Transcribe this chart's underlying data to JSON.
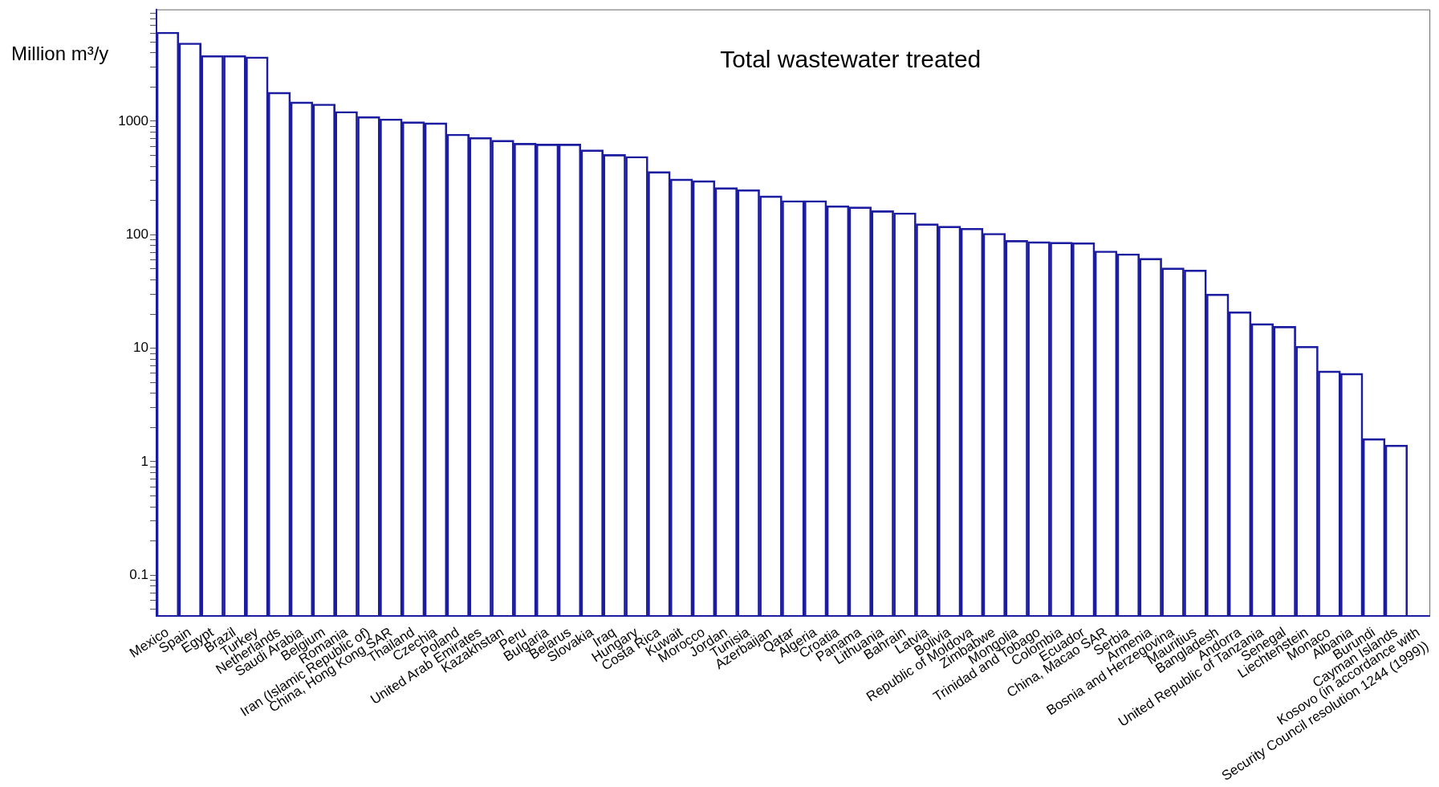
{
  "chart_data": {
    "type": "bar",
    "title": "Total wastewater treated",
    "ylabel": "Million m³/y",
    "categories": [
      "Mexico",
      "Spain",
      "Egypt",
      "Brazil",
      "Turkey",
      "Netherlands",
      "Saudi Arabia",
      "Belgium",
      "Romania",
      "Iran (Islamic Republic of)",
      "China, Hong Kong SAR",
      "Thailand",
      "Czechia",
      "Poland",
      "United Arab Emirates",
      "Kazakhstan",
      "Peru",
      "Bulgaria",
      "Belarus",
      "Slovakia",
      "Iraq",
      "Hungary",
      "Costa Rica",
      "Kuwait",
      "Morocco",
      "Jordan",
      "Tunisia",
      "Azerbaijan",
      "Qatar",
      "Algeria",
      "Croatia",
      "Panama",
      "Lithuania",
      "Bahrain",
      "Latvia",
      "Bolivia",
      "Republic of Moldova",
      "Zimbabwe",
      "Mongolia",
      "Trinidad and Tobago",
      "Colombia",
      "Ecuador",
      "China, Macao SAR",
      "Serbia",
      "Armenia",
      "Bosnia and Herzegovina",
      "Mauritius",
      "Bangladesh",
      "Andorra",
      "United Republic of Tanzania",
      "Senegal",
      "Liechtenstein",
      "Monaco",
      "Albania",
      "Burundi",
      "Cayman Islands",
      "Kosovo (in accordance with Security Council resolution 1244 (1999))"
    ],
    "values": [
      6100,
      4900,
      3800,
      3800,
      3700,
      1800,
      1480,
      1420,
      1220,
      1100,
      1050,
      990,
      970,
      770,
      720,
      680,
      640,
      630,
      630,
      560,
      510,
      490,
      360,
      310,
      300,
      260,
      250,
      220,
      200,
      200,
      180,
      176,
      163,
      156,
      125,
      119,
      114,
      103,
      89,
      87,
      86,
      85,
      72,
      68,
      62,
      51,
      49,
      30,
      21,
      16.5,
      15.6,
      10.4,
      6.3,
      6,
      1.6,
      1.4,
      null
    ],
    "color": "#1c1ca0",
    "log": true,
    "ylim": [
      0.044,
      9600
    ],
    "yticks": [
      {
        "value": 0.05,
        "label": null
      },
      {
        "value": 0.06,
        "label": null
      },
      {
        "value": 0.07,
        "label": null
      },
      {
        "value": 0.08,
        "label": null
      },
      {
        "value": 0.09,
        "label": null
      },
      0.1,
      {
        "value": 0.2,
        "label": null
      },
      {
        "value": 0.3,
        "label": null
      },
      {
        "value": 0.4,
        "label": null
      },
      {
        "value": 0.5,
        "label": null
      },
      {
        "value": 0.6,
        "label": null
      },
      {
        "value": 0.7,
        "label": null
      },
      {
        "value": 0.8,
        "label": null
      },
      {
        "value": 0.9,
        "label": null
      },
      1,
      {
        "value": 2,
        "label": null
      },
      {
        "value": 3,
        "label": null
      },
      {
        "value": 4,
        "label": null
      },
      {
        "value": 5,
        "label": null
      },
      {
        "value": 6,
        "label": null
      },
      {
        "value": 7,
        "label": null
      },
      {
        "value": 8,
        "label": null
      },
      {
        "value": 9,
        "label": null
      },
      10,
      {
        "value": 20,
        "label": null
      },
      {
        "value": 30,
        "label": null
      },
      {
        "value": 40,
        "label": null
      },
      {
        "value": 50,
        "label": null
      },
      {
        "value": 60,
        "label": null
      },
      {
        "value": 70,
        "label": null
      },
      {
        "value": 80,
        "label": null
      },
      {
        "value": 90,
        "label": null
      },
      100,
      {
        "value": 200,
        "label": null
      },
      {
        "value": 300,
        "label": null
      },
      {
        "value": 400,
        "label": null
      },
      {
        "value": 500,
        "label": null
      },
      {
        "value": 600,
        "label": null
      },
      {
        "value": 700,
        "label": null
      },
      {
        "value": 800,
        "label": null
      },
      {
        "value": 900,
        "label": null
      },
      1000,
      {
        "value": 2000,
        "label": null
      },
      {
        "value": 3000,
        "label": null
      },
      {
        "value": 4000,
        "label": null
      },
      {
        "value": 5000,
        "label": null
      },
      {
        "value": 6000,
        "label": null
      },
      {
        "value": 7000,
        "label": null
      },
      {
        "value": 8000,
        "label": null
      },
      {
        "value": 9000,
        "label": null
      }
    ],
    "grid": false,
    "legend": false
  }
}
